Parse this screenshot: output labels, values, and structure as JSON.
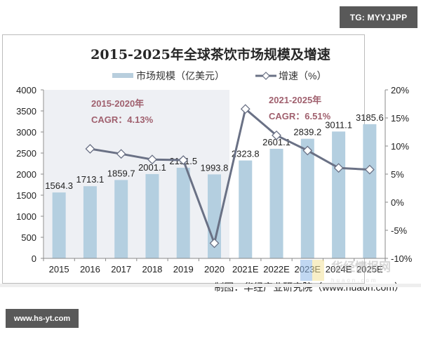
{
  "watermarks": {
    "top_badge": "TG: MYYJJPP",
    "bottom_badge": "www.hs-yt.com",
    "overlay_logo_text": "华经情报网",
    "overlay_logo_sub": "huaon.com"
  },
  "chart_data": {
    "type": "bar+line",
    "title": "2015-2025年全球茶饮市场规模及增速",
    "categories": [
      "2015",
      "2016",
      "2017",
      "2018",
      "2019",
      "2020",
      "2021E",
      "2022E",
      "2023E",
      "2024E",
      "2025E"
    ],
    "series": [
      {
        "name": "市场规模（亿美元）",
        "type": "bar",
        "axis": "left",
        "color": "#b4cfe0",
        "values": [
          1564.3,
          1713.1,
          1859.7,
          2001.1,
          2151.5,
          1993.8,
          2323.8,
          2601.1,
          2839.2,
          3011.1,
          3185.6
        ],
        "labels": [
          "1564.3",
          "1713.1",
          "1859.7",
          "2001.1",
          "2151.5",
          "1993.8",
          "2323.8",
          "2601.1",
          "2839.2",
          "3011.1",
          "3185.6"
        ]
      },
      {
        "name": "增速（%）",
        "type": "line",
        "axis": "right",
        "color": "#6a7185",
        "marker": "diamond",
        "values": [
          null,
          9.5,
          8.6,
          7.6,
          7.5,
          -7.3,
          16.6,
          11.9,
          9.2,
          6.1,
          5.8
        ]
      }
    ],
    "left_axis": {
      "ylim": [
        0,
        4000
      ],
      "ticks": [
        "0",
        "500",
        "1000",
        "1500",
        "2000",
        "2500",
        "3000",
        "3500",
        "4000"
      ]
    },
    "right_axis": {
      "ylim": [
        -10,
        20
      ],
      "ticks": [
        "-10%",
        "-5%",
        "0%",
        "5%",
        "10%",
        "15%",
        "20%"
      ]
    },
    "legend": {
      "position": "top",
      "items": [
        "市场规模（亿美元）",
        "增速（%）"
      ]
    },
    "annotations": [
      {
        "line1": "2015-2020年",
        "line2": "CAGR：4.13%",
        "color": "#a0606e"
      },
      {
        "line1": "2021-2025年",
        "line2": "CAGR：6.51%",
        "color": "#a0606e"
      }
    ],
    "shaded_region": {
      "from": "2015",
      "to": "2020",
      "color": "#eeeff3"
    },
    "source": "制图：华经产业研究院（www.huaon.com）",
    "grid": false
  }
}
